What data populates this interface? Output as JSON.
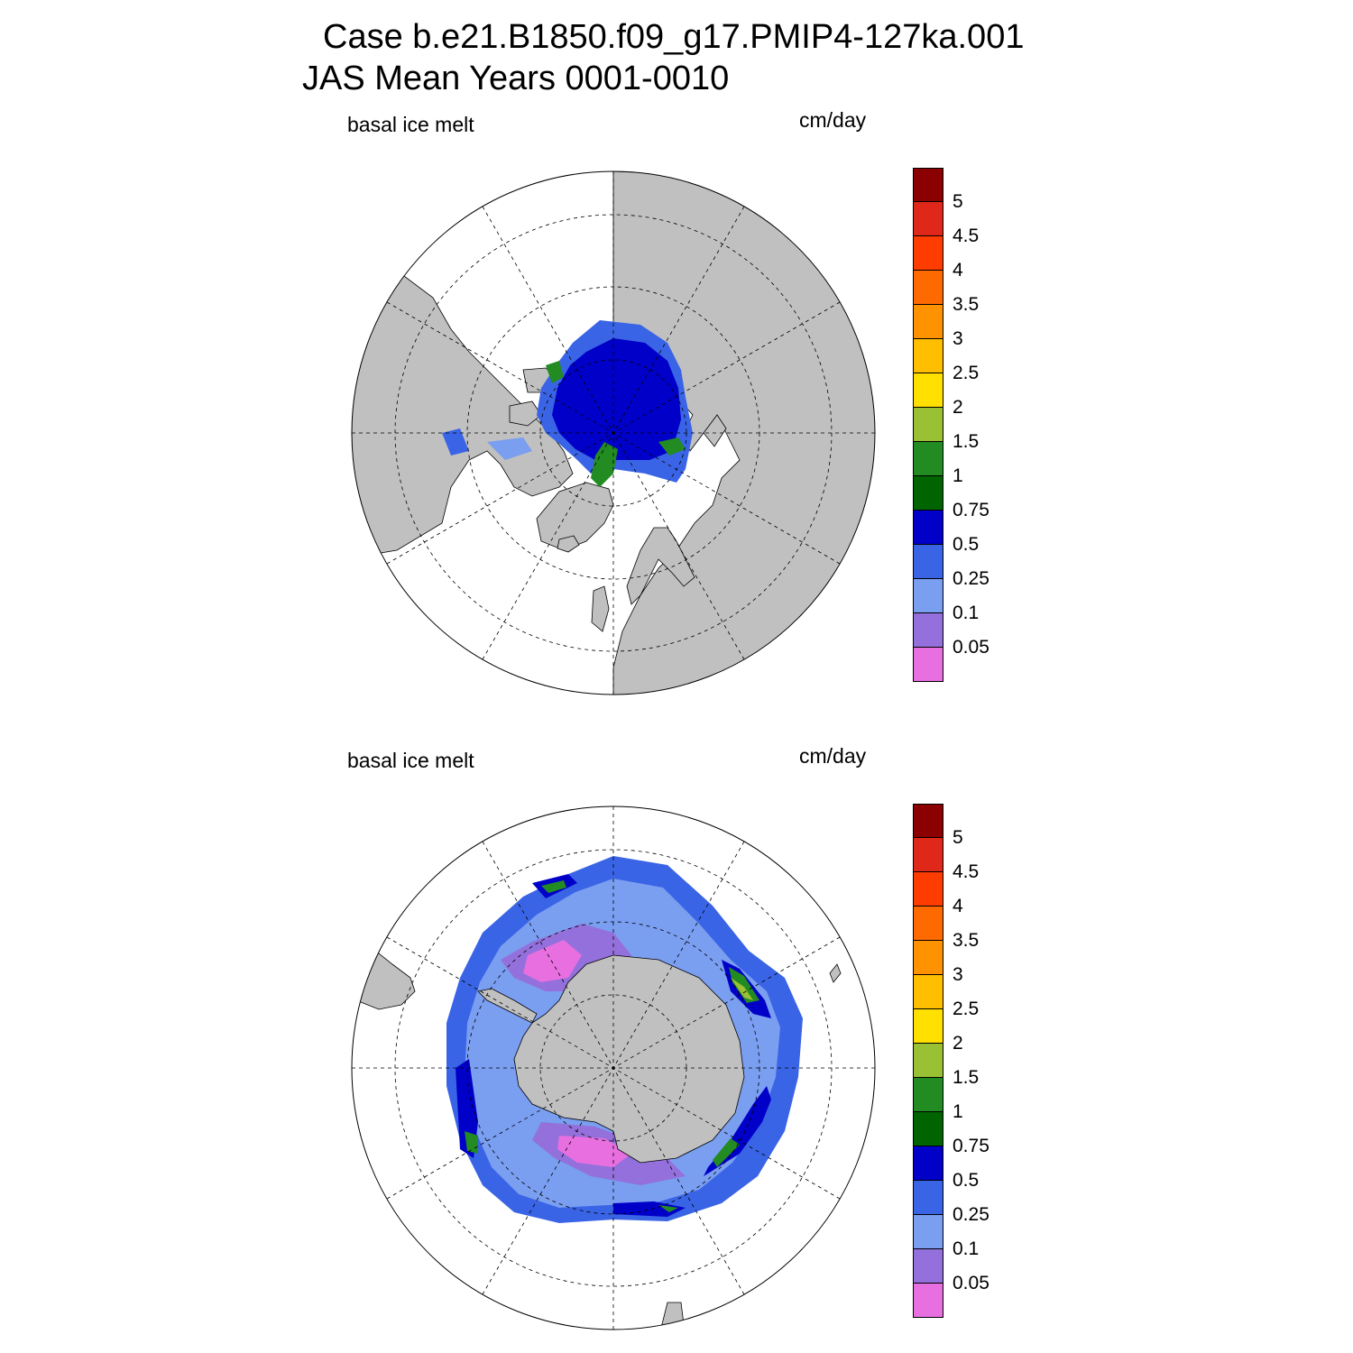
{
  "title": {
    "line1": "Case b.e21.B1850.f09_g17.PMIP4-127ka.001",
    "line2": "JAS Mean   Years 0001-0010"
  },
  "panels": [
    {
      "variable": "basal ice melt",
      "units": "cm/day",
      "hemisphere": "north"
    },
    {
      "variable": "basal ice melt",
      "units": "cm/day",
      "hemisphere": "south"
    }
  ],
  "colorbar": {
    "labels": [
      "5",
      "4.5",
      "4",
      "3.5",
      "3",
      "2.5",
      "2",
      "1.5",
      "1",
      "0.75",
      "0.5",
      "0.25",
      "0.1",
      "0.05"
    ],
    "colors": [
      "#8b0000",
      "#e0281a",
      "#ff3c00",
      "#ff6a00",
      "#ff9200",
      "#ffbe00",
      "#ffe000",
      "#9ac034",
      "#228b22",
      "#006400",
      "#0000c8",
      "#3a64e6",
      "#7a9ef0",
      "#9370db",
      "#e86fe0"
    ]
  },
  "map_colors": {
    "land": "#c0c0c0",
    "ocean": "#ffffff",
    "grid": "#000000"
  }
}
